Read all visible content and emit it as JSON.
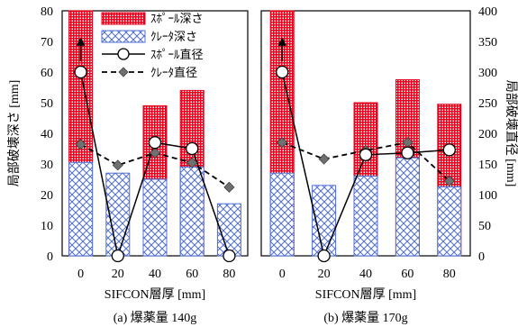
{
  "chart_data": {
    "type": "bar",
    "shared": {
      "xlabel": "SIFCON層厚 [mm]",
      "ylabel_left": "局部破壊深さ [mm]",
      "ylabel_right": "局部破壊直径 [mm]",
      "categories": [
        "0",
        "20",
        "40",
        "60",
        "80"
      ],
      "ylim_left": [
        0,
        80
      ],
      "yticks_left": [
        "0",
        "10",
        "20",
        "30",
        "40",
        "50",
        "60",
        "70",
        "80"
      ],
      "ylim_right": [
        0,
        400
      ],
      "yticks_right": [
        "0",
        "50",
        "100",
        "150",
        "200",
        "250",
        "300",
        "350",
        "400"
      ],
      "grid": false,
      "legend_position": "top-left",
      "colors": {
        "spall_bar": "#e8001c",
        "crater_bar": "#4f6fd8",
        "line": "#000000",
        "crater_marker": "#707070"
      }
    },
    "legend": [
      "ｽﾎﾟｰﾙ深さ",
      "ｸﾚｰﾀ深さ",
      "ｽﾎﾟｰﾙ直径",
      "ｸﾚｰﾀ直径"
    ],
    "panels": [
      {
        "caption": "(a)  爆薬量 140g",
        "series": [
          {
            "name": "ｽﾎﾟｰﾙ深さ",
            "axis": "left",
            "kind": "bar",
            "values": [
              80,
              null,
              49,
              54,
              null
            ],
            "clipped": [
              true,
              false,
              false,
              false,
              false
            ]
          },
          {
            "name": "ｸﾚｰﾀ深さ",
            "axis": "left",
            "kind": "bar",
            "values": [
              30.5,
              27,
              25,
              29,
              17
            ]
          },
          {
            "name": "ｽﾎﾟｰﾙ直径",
            "axis": "right",
            "kind": "line",
            "values": [
              300,
              0,
              185,
              175,
              0
            ]
          },
          {
            "name": "ｸﾚｰﾀ直径",
            "axis": "right",
            "kind": "line",
            "values": [
              182,
              148,
              168,
              152,
              112
            ]
          }
        ]
      },
      {
        "caption": "(b)  爆薬量 170g",
        "series": [
          {
            "name": "ｽﾎﾟｰﾙ深さ",
            "axis": "left",
            "kind": "bar",
            "values": [
              80,
              null,
              50,
              57.5,
              49.5
            ],
            "clipped": [
              true,
              false,
              false,
              false,
              false
            ]
          },
          {
            "name": "ｸﾚｰﾀ深さ",
            "axis": "left",
            "kind": "bar",
            "values": [
              27,
              23,
              26,
              32,
              22.5
            ]
          },
          {
            "name": "ｽﾎﾟｰﾙ直径",
            "axis": "right",
            "kind": "line",
            "values": [
              300,
              0,
              165,
              168,
              173
            ]
          },
          {
            "name": "ｸﾚｰﾀ直径",
            "axis": "right",
            "kind": "line",
            "values": [
              185,
              158,
              172,
              185,
              122
            ]
          }
        ]
      }
    ]
  }
}
